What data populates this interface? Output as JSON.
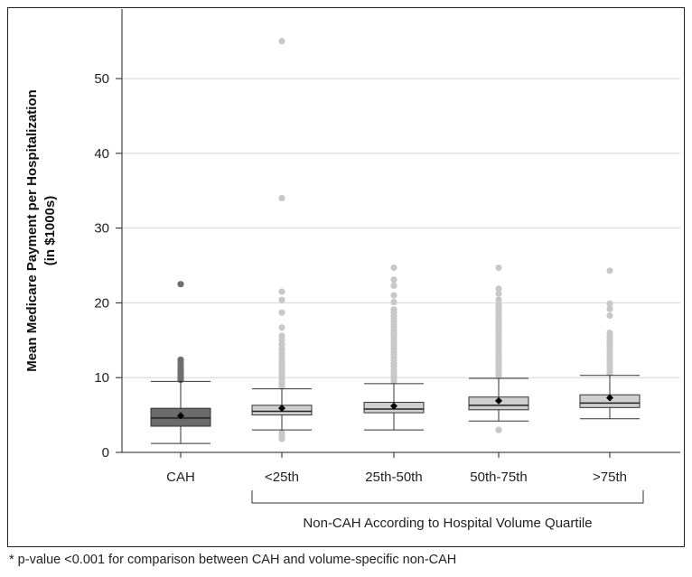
{
  "chart_data": {
    "type": "box",
    "ylabel_line1": "Mean Medicare Payment per Hospitalization",
    "ylabel_line2": "(in $1000s)",
    "ylim": [
      0,
      58
    ],
    "yticks": [
      0,
      10,
      20,
      30,
      40,
      50
    ],
    "grid": true,
    "group_label": "Non-CAH According to Hospital Volume Quartile",
    "categories": [
      "CAH",
      "<25th",
      "25th-50th",
      "50th-75th",
      ">75th"
    ],
    "boxes": [
      {
        "label": "CAH",
        "whisker_low": 1.2,
        "q1": 3.5,
        "median": 4.6,
        "q3": 5.9,
        "whisker_high": 9.5,
        "mean": 4.9,
        "fill": "#6b6b6b",
        "outliers": [
          9.7,
          9.9,
          10.1,
          10.3,
          10.5,
          10.7,
          10.9,
          11.2,
          11.6,
          12.0,
          12.4,
          22.5
        ]
      },
      {
        "label": "<25th",
        "whisker_low": 3.0,
        "q1": 5.0,
        "median": 5.5,
        "q3": 6.3,
        "whisker_high": 8.5,
        "mean": 5.9,
        "fill": "#cfcfcf",
        "outliers": [
          1.8,
          2.2,
          2.6,
          8.8,
          9.2,
          9.6,
          10.0,
          10.4,
          10.8,
          11.2,
          11.6,
          12.0,
          12.4,
          12.8,
          13.3,
          13.8,
          14.4,
          15.0,
          15.6,
          16.7,
          18.7,
          20.4,
          21.5,
          34.0,
          55.0
        ]
      },
      {
        "label": "25th-50th",
        "whisker_low": 3.0,
        "q1": 5.3,
        "median": 5.8,
        "q3": 6.7,
        "whisker_high": 9.2,
        "mean": 6.2,
        "fill": "#cfcfcf",
        "outliers": [
          9.5,
          9.9,
          10.3,
          10.7,
          11.1,
          11.5,
          11.9,
          12.3,
          12.7,
          13.1,
          13.5,
          13.9,
          14.3,
          14.7,
          15.1,
          15.5,
          15.9,
          16.3,
          16.7,
          17.1,
          17.5,
          17.9,
          18.3,
          18.7,
          19.1,
          20.1,
          21.0,
          22.3,
          23.1,
          24.7
        ]
      },
      {
        "label": "50th-75th",
        "whisker_low": 4.2,
        "q1": 5.7,
        "median": 6.3,
        "q3": 7.4,
        "whisker_high": 9.9,
        "mean": 6.9,
        "fill": "#cfcfcf",
        "outliers": [
          3.0,
          10.2,
          10.6,
          11.0,
          11.4,
          11.8,
          12.2,
          12.6,
          13.0,
          13.4,
          13.8,
          14.2,
          14.6,
          15.0,
          15.4,
          15.8,
          16.2,
          16.6,
          17.0,
          17.4,
          17.8,
          18.2,
          18.6,
          19.0,
          19.4,
          19.8,
          20.4,
          21.2,
          21.9,
          24.7
        ]
      },
      {
        "label": ">75th",
        "whisker_low": 4.5,
        "q1": 6.0,
        "median": 6.6,
        "q3": 7.7,
        "whisker_high": 10.3,
        "mean": 7.3,
        "fill": "#cfcfcf",
        "outliers": [
          10.6,
          11.0,
          11.4,
          11.8,
          12.2,
          12.6,
          13.0,
          13.4,
          13.8,
          14.2,
          14.6,
          15.0,
          15.5,
          16.0,
          18.3,
          19.2,
          19.9,
          24.3
        ]
      }
    ]
  },
  "footnote": "* p-value <0.001 for comparison between CAH and volume-specific non-CAH"
}
